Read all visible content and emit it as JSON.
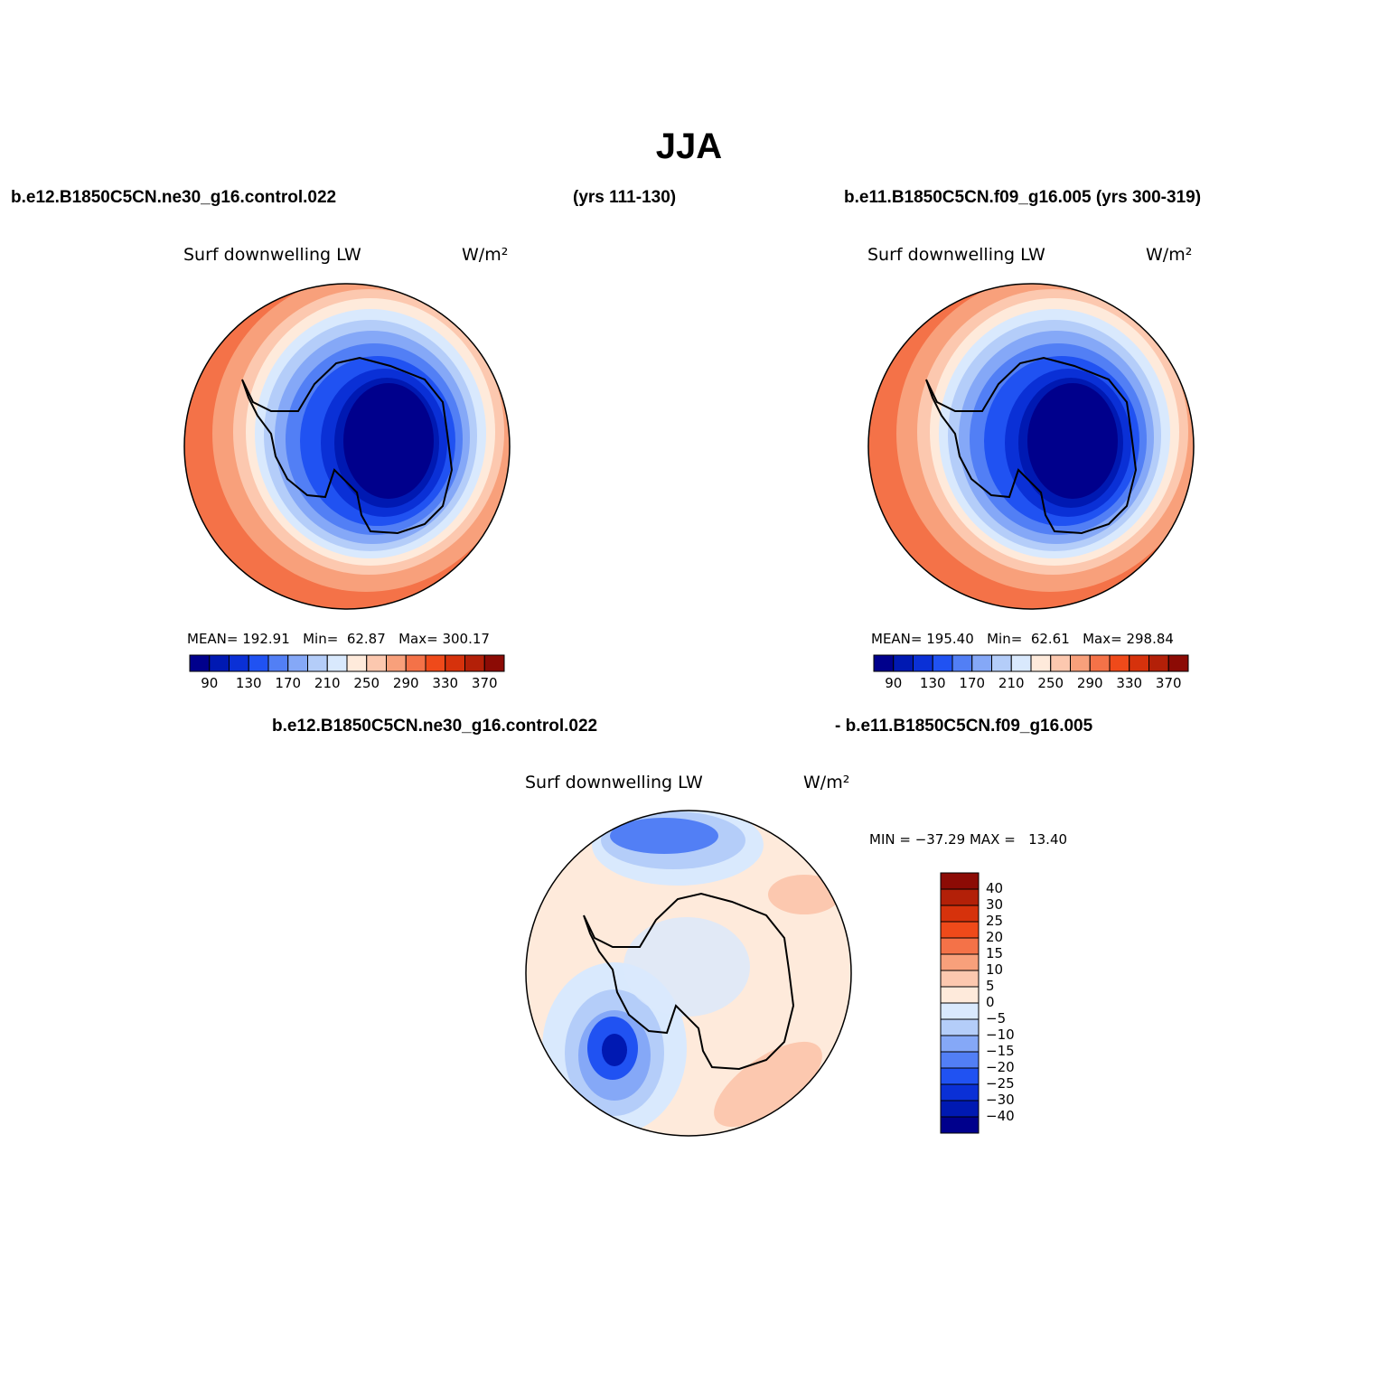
{
  "title": "JJA",
  "header": {
    "case1": "b.e12.B1850C5CN.ne30_g16.control.022",
    "years1": "(yrs 111-130)",
    "case2_years": "b.e11.B1850C5CN.f09_g16.005 (yrs 300-319)",
    "diff_case1": "b.e12.B1850C5CN.ne30_g16.control.022",
    "diff_case2": "- b.e11.B1850C5CN.f09_g16.005"
  },
  "panels": [
    {
      "variable": "Surf downwelling LW",
      "units": "W/m²",
      "mean_label": "MEAN=",
      "mean": "192.91",
      "min_label": "Min=",
      "min": "62.87",
      "max_label": "Max=",
      "max": "300.17"
    },
    {
      "variable": "Surf downwelling LW",
      "units": "W/m²",
      "mean_label": "MEAN=",
      "mean": "195.40",
      "min_label": "Min=",
      "min": "62.61",
      "max_label": "Max=",
      "max": "298.84"
    },
    {
      "variable": "Surf downwelling LW",
      "units": "W/m²",
      "minmax": "MIN = −37.29 MAX =   13.40"
    }
  ],
  "colorbar_main": {
    "labels": [
      "90",
      "130",
      "170",
      "210",
      "250",
      "290",
      "330",
      "370"
    ],
    "colors": [
      "#00008c",
      "#0019b2",
      "#0a30d6",
      "#2052f2",
      "#527ff5",
      "#85a8f7",
      "#b4cdf9",
      "#d9e9fd",
      "#feeadb",
      "#fcc8af",
      "#f8a07b",
      "#f47248",
      "#ef4a1a",
      "#d6320c",
      "#b32008",
      "#8c0b05"
    ]
  },
  "colorbar_diff": {
    "labels": [
      "40",
      "30",
      "25",
      "20",
      "15",
      "10",
      "5",
      "0",
      "−5",
      "−10",
      "−15",
      "−20",
      "−25",
      "−30",
      "−40"
    ],
    "colors": [
      "#8c0b05",
      "#b32008",
      "#d6320c",
      "#ef4a1a",
      "#f47248",
      "#f8a07b",
      "#fcc8af",
      "#feeadb",
      "#d9e9fd",
      "#b4cdf9",
      "#85a8f7",
      "#527ff5",
      "#2052f2",
      "#0a30d6",
      "#0019b2",
      "#00008c"
    ]
  }
}
